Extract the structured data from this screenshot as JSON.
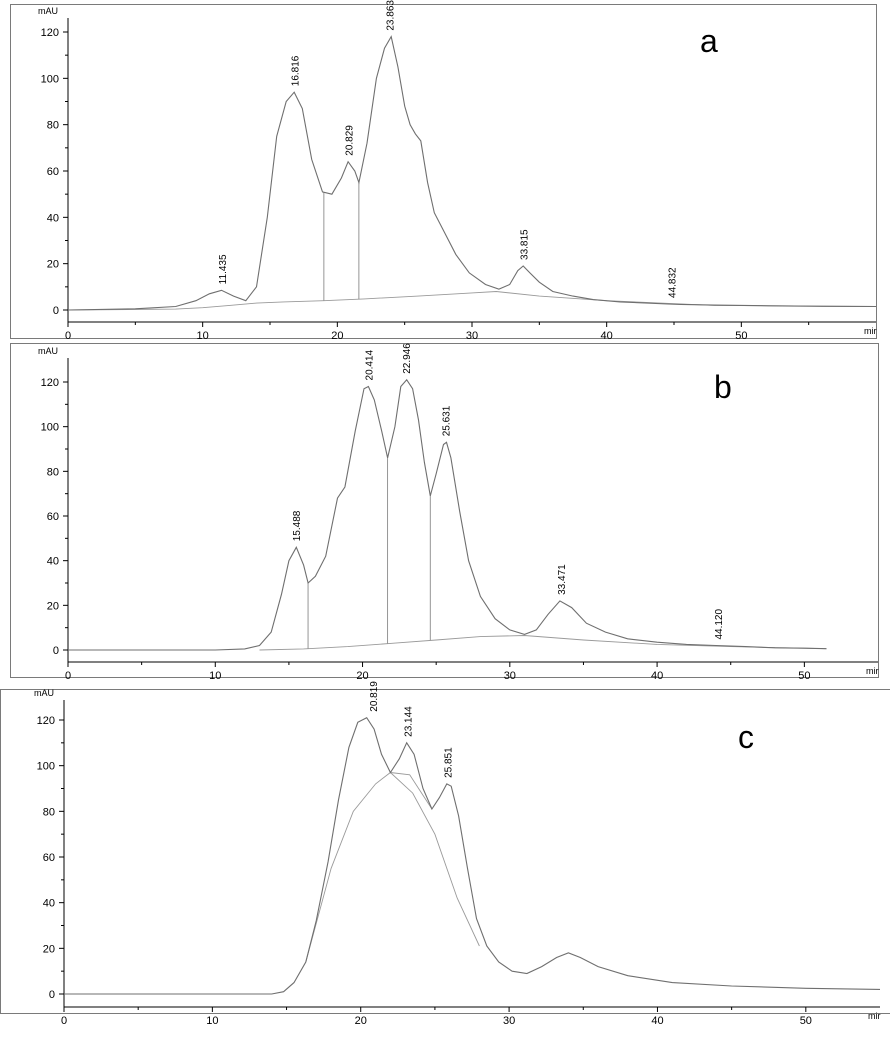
{
  "chart_data": [
    {
      "type": "line",
      "panel_label": "a",
      "ylabel": "mAU",
      "xlabel": "mir",
      "xlim": [
        0,
        60
      ],
      "ylim": [
        -5,
        125
      ],
      "x_ticks": [
        "0",
        "10",
        "20",
        "30",
        "40",
        "50"
      ],
      "y_ticks": [
        "0",
        "20",
        "40",
        "60",
        "80",
        "100",
        "120"
      ],
      "series": [
        {
          "x": [
            0,
            5,
            8,
            9.5,
            10.5,
            11.4,
            12.3,
            13.2,
            14,
            14.8,
            15.5,
            16.2,
            16.8,
            17.4,
            18.1,
            18.9,
            19.6,
            20.3,
            20.8,
            21.3,
            21.6,
            22.2,
            22.9,
            23.5,
            24,
            24.5,
            25,
            25.4,
            25.8,
            26.2,
            26.7,
            27.2,
            28,
            28.8,
            29.8,
            31,
            32,
            32.8,
            33.4,
            33.8,
            34.3,
            35,
            36,
            37.5,
            39,
            41,
            43,
            44.5,
            45.5,
            48,
            52,
            56,
            60
          ],
          "y": [
            0,
            0.5,
            1.5,
            4,
            7,
            8.5,
            6,
            4,
            10,
            40,
            75,
            90,
            94,
            87,
            65,
            51,
            50,
            57,
            64,
            60,
            55,
            72,
            100,
            113,
            118,
            105,
            88,
            80,
            76,
            73,
            55,
            42,
            33,
            24,
            16,
            11,
            9,
            11,
            17,
            19,
            16,
            12,
            8,
            6,
            4.5,
            3.5,
            3,
            2.6,
            2.4,
            2.1,
            1.8,
            1.6,
            1.5
          ]
        }
      ],
      "baseline": {
        "x": [
          0,
          8,
          10,
          12,
          14,
          16,
          19,
          22,
          26,
          30,
          31.8,
          35,
          40,
          48,
          60
        ],
        "y": [
          0,
          0.4,
          1,
          2,
          3,
          3.5,
          4,
          4.8,
          6,
          7.4,
          8,
          6,
          4,
          2,
          1.5
        ]
      },
      "peaks": [
        {
          "rt": 11.435,
          "label": "11.435",
          "height": 8.5
        },
        {
          "rt": 16.816,
          "label": "16.816",
          "height": 94
        },
        {
          "rt": 20.829,
          "label": "20.829",
          "height": 64
        },
        {
          "rt": 23.863,
          "label": "23.863",
          "height": 118
        },
        {
          "rt": 33.815,
          "label": "33.815",
          "height": 19
        },
        {
          "rt": 44.832,
          "label": "44.832",
          "height": 2.6
        }
      ],
      "drops": [
        19,
        21.6
      ]
    },
    {
      "type": "line",
      "panel_label": "b",
      "ylabel": "mAU",
      "xlabel": "mir",
      "xlim": [
        0,
        55
      ],
      "ylim": [
        -5,
        125
      ],
      "x_ticks": [
        "0",
        "10",
        "20",
        "30",
        "40",
        "50"
      ],
      "y_ticks": [
        "0",
        "20",
        "40",
        "60",
        "80",
        "100",
        "120"
      ],
      "series": [
        {
          "x": [
            0,
            5,
            10,
            12,
            13,
            13.8,
            14.5,
            15,
            15.5,
            16,
            16.3,
            16.8,
            17.5,
            18.3,
            18.8,
            19.5,
            20.1,
            20.4,
            20.8,
            21.3,
            21.7,
            22.2,
            22.6,
            23,
            23.4,
            23.8,
            24.2,
            24.6,
            25,
            25.5,
            25.7,
            26,
            26.6,
            27.2,
            28,
            29,
            30,
            31,
            31.8,
            32.6,
            33.4,
            34.2,
            35.2,
            36.5,
            38,
            40,
            42,
            44,
            46,
            48,
            50,
            51.5
          ],
          "y": [
            0,
            0,
            0,
            0.5,
            2,
            8,
            25,
            40,
            46,
            38,
            30,
            33,
            42,
            68,
            73,
            98,
            117,
            118,
            112,
            98,
            86,
            100,
            118,
            121,
            117,
            103,
            84,
            69,
            79,
            92,
            93,
            86,
            62,
            40,
            24,
            14,
            9,
            7,
            9,
            16,
            22,
            19,
            12,
            8,
            5,
            3.5,
            2.5,
            2,
            1.5,
            1,
            0.8,
            0.6
          ]
        }
      ],
      "baseline": {
        "x": [
          13,
          16,
          19,
          22,
          25,
          28,
          31,
          35,
          40,
          45,
          51.5
        ],
        "y": [
          0,
          0.5,
          1.5,
          3,
          4.5,
          6,
          6.5,
          4.5,
          2.5,
          1.5,
          0.6
        ]
      },
      "peaks": [
        {
          "rt": 15.488,
          "label": "15.488",
          "height": 46
        },
        {
          "rt": 20.414,
          "label": "20.414",
          "height": 118
        },
        {
          "rt": 22.946,
          "label": "22.946",
          "height": 121
        },
        {
          "rt": 25.631,
          "label": "25.631",
          "height": 93
        },
        {
          "rt": 33.471,
          "label": "33.471",
          "height": 22
        },
        {
          "rt": 44.12,
          "label": "44.120",
          "height": 2
        }
      ],
      "drops": [
        16.3,
        21.7,
        24.6
      ]
    },
    {
      "type": "line",
      "panel_label": "c",
      "ylabel": "mAU",
      "xlabel": "mir",
      "xlim": [
        0,
        55
      ],
      "ylim": [
        -5,
        125
      ],
      "x_ticks": [
        "0",
        "10",
        "20",
        "30",
        "40",
        "50"
      ],
      "y_ticks": [
        "0",
        "20",
        "40",
        "60",
        "80",
        "100",
        "120"
      ],
      "series": [
        {
          "x": [
            0,
            5,
            10,
            14,
            14.8,
            15.5,
            16.3,
            17,
            17.8,
            18.5,
            19.2,
            19.8,
            20.4,
            20.9,
            21.4,
            22,
            22.6,
            23.1,
            23.6,
            24.2,
            24.8,
            25.3,
            25.8,
            26.1,
            26.6,
            27.2,
            27.8,
            28.5,
            29.3,
            30.2,
            31.2,
            32.2,
            33.2,
            34,
            34.8,
            36,
            38,
            41,
            45,
            50,
            55
          ],
          "y": [
            0,
            0,
            0,
            0,
            1,
            5,
            14,
            32,
            58,
            85,
            108,
            119,
            121,
            116,
            105,
            97,
            103,
            110,
            105,
            90,
            81,
            86,
            92,
            91,
            78,
            55,
            33,
            21,
            14,
            10,
            9,
            12,
            16,
            18,
            16,
            12,
            8,
            5,
            3.5,
            2.5,
            2
          ]
        }
      ],
      "splits": [
        {
          "x": [
            16.3,
            18,
            19.5,
            21,
            22,
            23.5,
            25,
            26.5,
            28
          ],
          "y": [
            14,
            55,
            80,
            92,
            97,
            88,
            70,
            42,
            21
          ]
        },
        {
          "x": [
            22,
            23.3,
            24.8
          ],
          "y": [
            97,
            96,
            81
          ]
        }
      ],
      "peaks": [
        {
          "rt": 20.819,
          "label": "20.819",
          "height": 121
        },
        {
          "rt": 23.144,
          "label": "23.144",
          "height": 110
        },
        {
          "rt": 25.851,
          "label": "25.851",
          "height": 92
        }
      ]
    }
  ]
}
